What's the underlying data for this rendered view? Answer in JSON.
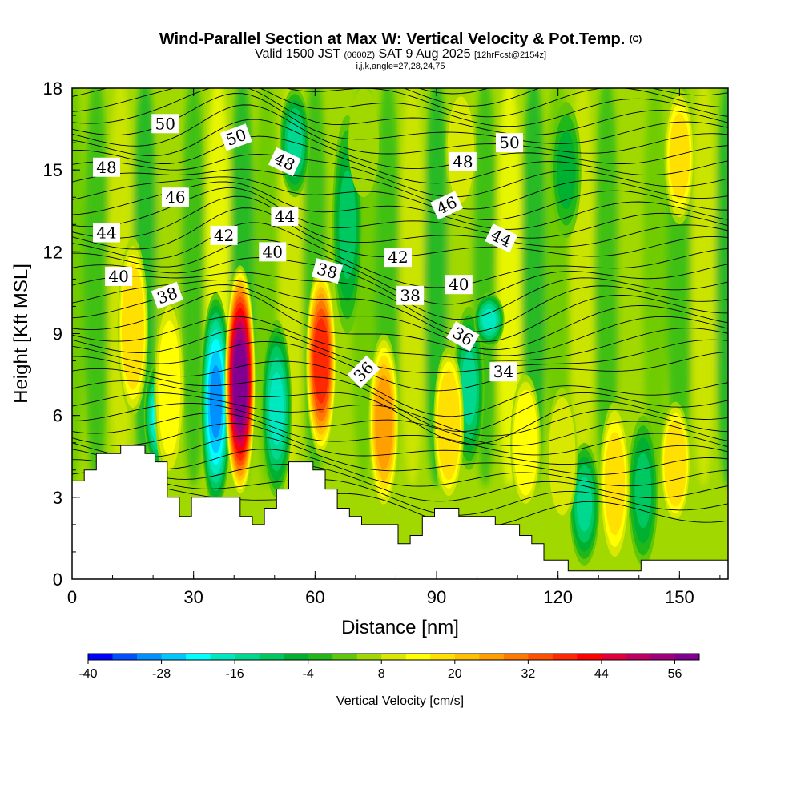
{
  "header": {
    "title": "Wind-Parallel Section at Max W: Vertical Velocity & Pot.Temp.",
    "copyright": "(C)",
    "valid_prefix": "Valid 1500 JST",
    "valid_utc": "(0600Z)",
    "valid_date": "SAT 9 Aug 2025",
    "forecast": "[12hrFcst@2154z]",
    "indices": "i,j,k,angle=27,28,24,75"
  },
  "chart_data": {
    "type": "heatmap",
    "title": "Wind-Parallel Section at Max W: Vertical Velocity & Pot.Temp.",
    "xlabel": "Distance [nm]",
    "ylabel": "Height [Kft MSL]",
    "xlim": [
      0,
      162
    ],
    "ylim": [
      0,
      18
    ],
    "x_ticks": [
      0,
      30,
      60,
      90,
      120,
      150
    ],
    "y_ticks": [
      0,
      3,
      6,
      9,
      12,
      15,
      18
    ],
    "colorbar": {
      "title": "Vertical Velocity [cm/s]",
      "min": -40,
      "max": 60,
      "step": 4,
      "tick_values": [
        -40,
        -28,
        -16,
        -4,
        8,
        20,
        32,
        44,
        56
      ],
      "tick_labels": [
        "-40",
        "-28",
        "-16",
        "-4",
        "8",
        "20",
        "32",
        "44",
        "56"
      ],
      "colors": [
        "#0000ff",
        "#0050ff",
        "#0090ff",
        "#00c8ff",
        "#00ffff",
        "#00e8c0",
        "#00d890",
        "#00c860",
        "#00b030",
        "#20b818",
        "#60c808",
        "#a0d800",
        "#d8e800",
        "#ffff00",
        "#ffe000",
        "#ffc000",
        "#ffa000",
        "#ff7800",
        "#ff5000",
        "#ff2800",
        "#ff0000",
        "#e0003c",
        "#c00060",
        "#a0007c",
        "#800090"
      ]
    },
    "updraft_columns": [
      {
        "x": 15,
        "y0": 6.0,
        "y1": 12.5,
        "w": 18
      },
      {
        "x": 24,
        "y0": 3.5,
        "y1": 10.5,
        "w": 12
      },
      {
        "x": 41.5,
        "y0": 3.0,
        "y1": 11.5,
        "w": 56
      },
      {
        "x": 61.5,
        "y0": 4.5,
        "y1": 11.5,
        "w": 36
      },
      {
        "x": 77,
        "y0": 2.5,
        "y1": 9.0,
        "w": 24
      },
      {
        "x": 93,
        "y0": 2.8,
        "y1": 8.5,
        "w": 18
      },
      {
        "x": 112,
        "y0": 2.5,
        "y1": 7.5,
        "w": 14
      },
      {
        "x": 121,
        "y0": 2.0,
        "y1": 7.0,
        "w": 10
      },
      {
        "x": 134,
        "y0": 0.5,
        "y1": 6.5,
        "w": 16
      },
      {
        "x": 149,
        "y0": 2.0,
        "y1": 6.5,
        "w": 18
      },
      {
        "x": 96,
        "y0": 13.5,
        "y1": 18.0,
        "w": 10
      },
      {
        "x": 150,
        "y0": 13.0,
        "y1": 18.0,
        "w": 16
      },
      {
        "x": 72,
        "y0": 14.0,
        "y1": 18.0,
        "w": 6
      }
    ],
    "downdraft_columns": [
      {
        "x": 21.5,
        "y0": 4.0,
        "y1": 8.0,
        "w": -24
      },
      {
        "x": 35.5,
        "y0": 2.5,
        "y1": 10.5,
        "w": -30
      },
      {
        "x": 50.5,
        "y0": 3.0,
        "y1": 9.5,
        "w": -18
      },
      {
        "x": 68,
        "y0": 9.0,
        "y1": 17.0,
        "w": -12
      },
      {
        "x": 98,
        "y0": 4.0,
        "y1": 10.0,
        "w": -14
      },
      {
        "x": 103,
        "y0": 8.5,
        "y1": 10.5,
        "w": -18
      },
      {
        "x": 126.5,
        "y0": 0.5,
        "y1": 5.0,
        "w": -14
      },
      {
        "x": 141,
        "y0": 0.5,
        "y1": 6.0,
        "w": -10
      },
      {
        "x": 55,
        "y0": 14.0,
        "y1": 18.0,
        "w": -16
      },
      {
        "x": 122,
        "y0": 12.5,
        "y1": 17.5,
        "w": -8
      }
    ],
    "terrain": [
      [
        0,
        3.6
      ],
      [
        3,
        3.6
      ],
      [
        3,
        4.0
      ],
      [
        6,
        4.0
      ],
      [
        6,
        4.6
      ],
      [
        12,
        4.6
      ],
      [
        12,
        4.9
      ],
      [
        18,
        4.9
      ],
      [
        18,
        4.6
      ],
      [
        20.5,
        4.6
      ],
      [
        20.5,
        4.3
      ],
      [
        23.5,
        4.3
      ],
      [
        23.5,
        3.0
      ],
      [
        26.5,
        3.0
      ],
      [
        26.5,
        2.3
      ],
      [
        29.5,
        2.3
      ],
      [
        29.5,
        3.0
      ],
      [
        35.5,
        3.0
      ],
      [
        35.5,
        3.0
      ],
      [
        41.5,
        3.0
      ],
      [
        41.5,
        2.3
      ],
      [
        44.5,
        2.3
      ],
      [
        44.5,
        2.0
      ],
      [
        47.5,
        2.0
      ],
      [
        47.5,
        2.6
      ],
      [
        50.5,
        2.6
      ],
      [
        50.5,
        3.3
      ],
      [
        53.5,
        3.3
      ],
      [
        53.5,
        4.3
      ],
      [
        59.5,
        4.3
      ],
      [
        59.5,
        4.0
      ],
      [
        62.5,
        4.0
      ],
      [
        62.5,
        3.3
      ],
      [
        65.5,
        3.3
      ],
      [
        65.5,
        2.6
      ],
      [
        68.5,
        2.6
      ],
      [
        68.5,
        2.3
      ],
      [
        71.5,
        2.3
      ],
      [
        71.5,
        2.0
      ],
      [
        80.5,
        2.0
      ],
      [
        80.5,
        1.3
      ],
      [
        83.5,
        1.3
      ],
      [
        83.5,
        1.6
      ],
      [
        86.5,
        1.6
      ],
      [
        86.5,
        2.3
      ],
      [
        89.5,
        2.3
      ],
      [
        89.5,
        2.6
      ],
      [
        95.5,
        2.6
      ],
      [
        95.5,
        2.3
      ],
      [
        104.5,
        2.3
      ],
      [
        104.5,
        2.0
      ],
      [
        110.5,
        2.0
      ],
      [
        110.5,
        1.6
      ],
      [
        113.5,
        1.6
      ],
      [
        113.5,
        1.3
      ],
      [
        116.5,
        1.3
      ],
      [
        116.5,
        0.7
      ],
      [
        122.5,
        0.7
      ],
      [
        122.5,
        0.3
      ],
      [
        128.5,
        0.3
      ],
      [
        128.5,
        0.3
      ],
      [
        140.5,
        0.3
      ],
      [
        140.5,
        0.7
      ],
      [
        162,
        0.7
      ]
    ],
    "theta_contours": {
      "interval": 1,
      "labeled_levels": [
        "34",
        "36",
        "38",
        "40",
        "42",
        "44",
        "46",
        "48",
        "50"
      ]
    },
    "contour_labels": [
      {
        "text": "50",
        "x": 23,
        "y": 16.7,
        "rot": 0
      },
      {
        "text": "50",
        "x": 40.5,
        "y": 16.2,
        "rot": -20
      },
      {
        "text": "50",
        "x": 108,
        "y": 16.0,
        "rot": 0
      },
      {
        "text": "48",
        "x": 8.5,
        "y": 15.1,
        "rot": 0
      },
      {
        "text": "48",
        "x": 52.5,
        "y": 15.3,
        "rot": 25
      },
      {
        "text": "48",
        "x": 96.5,
        "y": 15.3,
        "rot": 0
      },
      {
        "text": "46",
        "x": 25.5,
        "y": 14.0,
        "rot": 0
      },
      {
        "text": "46",
        "x": 92.5,
        "y": 13.7,
        "rot": -25
      },
      {
        "text": "44",
        "x": 8.5,
        "y": 12.7,
        "rot": 0
      },
      {
        "text": "44",
        "x": 52.5,
        "y": 13.3,
        "rot": 0
      },
      {
        "text": "44",
        "x": 106,
        "y": 12.5,
        "rot": 25
      },
      {
        "text": "42",
        "x": 37.5,
        "y": 12.6,
        "rot": 0
      },
      {
        "text": "42",
        "x": 80.5,
        "y": 11.8,
        "rot": 0
      },
      {
        "text": "40",
        "x": 11.5,
        "y": 11.1,
        "rot": 0
      },
      {
        "text": "40",
        "x": 49.5,
        "y": 12.0,
        "rot": 0
      },
      {
        "text": "40",
        "x": 95.5,
        "y": 10.8,
        "rot": 0
      },
      {
        "text": "38",
        "x": 23.5,
        "y": 10.4,
        "rot": -20
      },
      {
        "text": "38",
        "x": 63,
        "y": 11.3,
        "rot": 15
      },
      {
        "text": "38",
        "x": 83.5,
        "y": 10.4,
        "rot": 0
      },
      {
        "text": "36",
        "x": 96.5,
        "y": 8.9,
        "rot": 30
      },
      {
        "text": "36",
        "x": 72,
        "y": 7.6,
        "rot": -45
      },
      {
        "text": "34",
        "x": 106.5,
        "y": 7.6,
        "rot": 0
      }
    ]
  }
}
